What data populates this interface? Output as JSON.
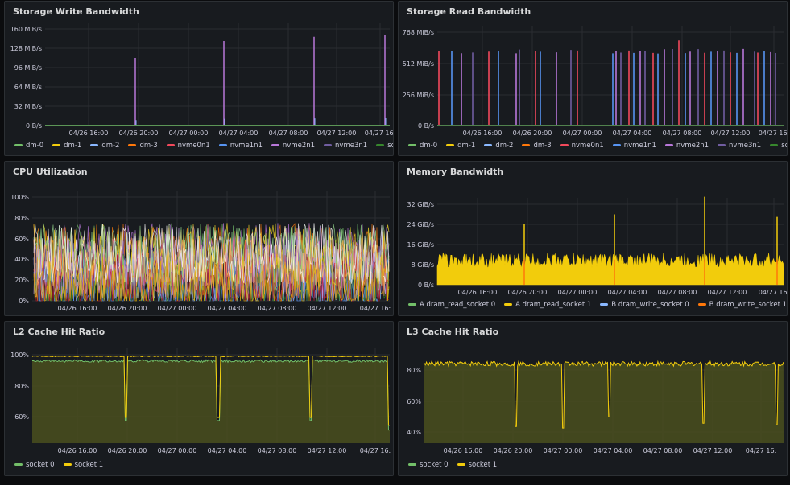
{
  "panels": [
    {
      "id": "write",
      "title": "Storage Write Bandwidth",
      "y_ticks": [
        "160 MiB/s",
        "128 MiB/s",
        "96 MiB/s",
        "64 MiB/s",
        "32 MiB/s",
        "0 B/s"
      ],
      "x_ticks": [
        "04/26 16:00",
        "04/26 20:00",
        "04/27 00:00",
        "04/27 04:00",
        "04/27 08:00",
        "04/27 12:00",
        "04/27 16:"
      ],
      "legend": [
        {
          "label": "dm-0",
          "color": "#73bf69"
        },
        {
          "label": "dm-1",
          "color": "#f2cc0c"
        },
        {
          "label": "dm-2",
          "color": "#8ab8ff"
        },
        {
          "label": "dm-3",
          "color": "#ff780a"
        },
        {
          "label": "nvme0n1",
          "color": "#f2495c"
        },
        {
          "label": "nvme1n1",
          "color": "#5794f2"
        },
        {
          "label": "nvme2n1",
          "color": "#b877d9"
        },
        {
          "label": "nvme3n1",
          "color": "#705da0"
        },
        {
          "label": "sda",
          "color": "#37872d"
        }
      ]
    },
    {
      "id": "read",
      "title": "Storage Read Bandwidth",
      "y_ticks": [
        "768 MiB/s",
        "512 MiB/s",
        "256 MiB/s",
        "0 B/s"
      ],
      "x_ticks": [
        "04/26 16:00",
        "04/26 20:00",
        "04/27 00:00",
        "04/27 04:00",
        "04/27 08:00",
        "04/27 12:00",
        "04/27 16:"
      ],
      "legend": [
        {
          "label": "dm-0",
          "color": "#73bf69"
        },
        {
          "label": "dm-1",
          "color": "#f2cc0c"
        },
        {
          "label": "dm-2",
          "color": "#8ab8ff"
        },
        {
          "label": "dm-3",
          "color": "#ff780a"
        },
        {
          "label": "nvme0n1",
          "color": "#f2495c"
        },
        {
          "label": "nvme1n1",
          "color": "#5794f2"
        },
        {
          "label": "nvme2n1",
          "color": "#b877d9"
        },
        {
          "label": "nvme3n1",
          "color": "#705da0"
        },
        {
          "label": "sda",
          "color": "#37872d"
        }
      ]
    },
    {
      "id": "cpu",
      "title": "CPU Utilization",
      "y_ticks": [
        "100%",
        "80%",
        "60%",
        "40%",
        "20%",
        "0%"
      ],
      "x_ticks": [
        "04/26 16:00",
        "04/26 20:00",
        "04/27 00:00",
        "04/27 04:00",
        "04/27 08:00",
        "04/27 12:00",
        "04/27 16:"
      ],
      "legend": []
    },
    {
      "id": "mem",
      "title": "Memory Bandwidth",
      "y_ticks": [
        "32 GiB/s",
        "24 GiB/s",
        "16 GiB/s",
        "8 GiB/s",
        "0 B/s"
      ],
      "x_ticks": [
        "04/26 16:00",
        "04/26 20:00",
        "04/27 00:00",
        "04/27 04:00",
        "04/27 08:00",
        "04/27 12:00",
        "04/27 16:"
      ],
      "legend": [
        {
          "label": "A dram_read_socket 0",
          "color": "#73bf69"
        },
        {
          "label": "A dram_read_socket 1",
          "color": "#f2cc0c"
        },
        {
          "label": "B dram_write_socket 0",
          "color": "#8ab8ff"
        },
        {
          "label": "B dram_write_socket 1",
          "color": "#ff780a"
        }
      ]
    },
    {
      "id": "l2",
      "title": "L2 Cache Hit Ratio",
      "y_ticks": [
        "100%",
        "80%",
        "60%"
      ],
      "x_ticks": [
        "04/26 16:00",
        "04/26 20:00",
        "04/27 00:00",
        "04/27 04:00",
        "04/27 08:00",
        "04/27 12:00",
        "04/27 16:"
      ],
      "legend": [
        {
          "label": "socket 0",
          "color": "#73bf69"
        },
        {
          "label": "socket 1",
          "color": "#f2cc0c"
        }
      ]
    },
    {
      "id": "l3",
      "title": "L3 Cache Hit Ratio",
      "y_ticks": [
        "80%",
        "60%",
        "40%"
      ],
      "x_ticks": [
        "04/26 16:00",
        "04/26 20:00",
        "04/27 00:00",
        "04/27 04:00",
        "04/27 08:00",
        "04/27 12:00",
        "04/27 16:"
      ],
      "legend": [
        {
          "label": "socket 0",
          "color": "#73bf69"
        },
        {
          "label": "socket 1",
          "color": "#f2cc0c"
        }
      ]
    }
  ],
  "series_summary": {
    "write_spikes_mib": [
      112,
      140,
      147,
      150
    ],
    "memory_baseline_gib": 12,
    "memory_spikes_gib": [
      24,
      28,
      35,
      27
    ],
    "l2_socket1_pct": 99,
    "l2_socket0_pct": 96,
    "l3_level_pct": 84
  }
}
